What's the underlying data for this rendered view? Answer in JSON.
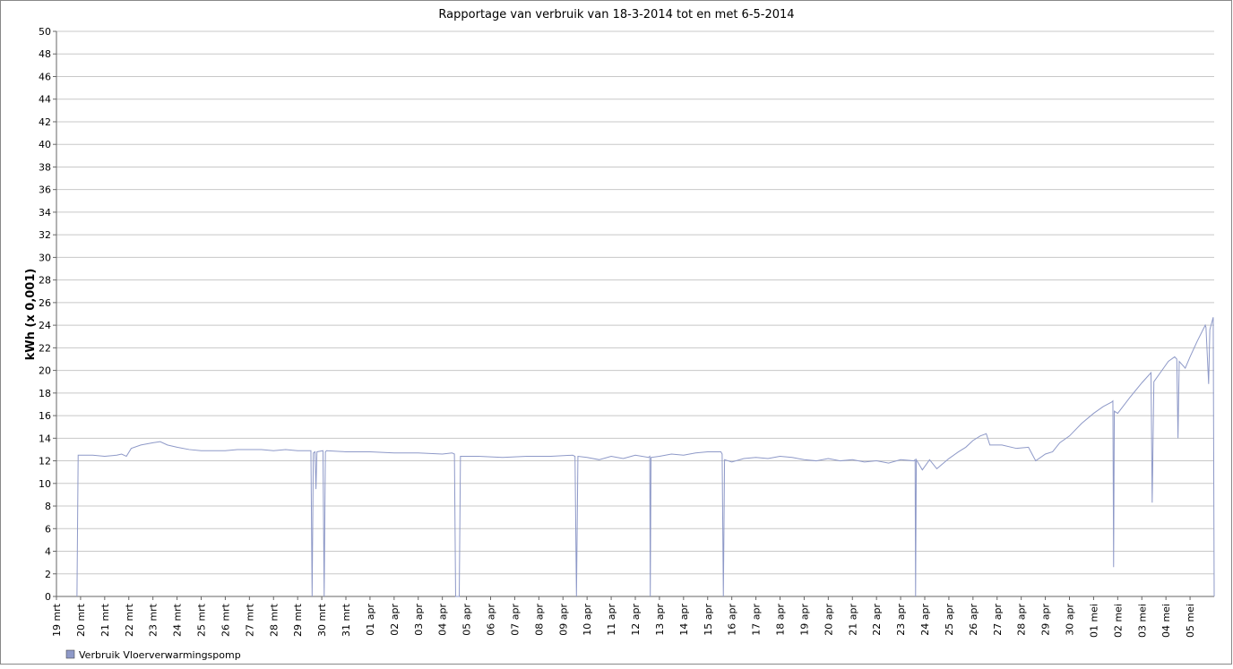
{
  "chart_data": {
    "type": "line",
    "title": "Rapportage van verbruik van 18-3-2014 tot en met 6-5-2014",
    "y_label": "kWh (x 0,001)",
    "ylim": [
      0,
      50
    ],
    "yticks": [
      0,
      2,
      4,
      6,
      8,
      10,
      12,
      14,
      16,
      18,
      20,
      22,
      24,
      26,
      28,
      30,
      32,
      34,
      36,
      38,
      40,
      42,
      44,
      46,
      48,
      50
    ],
    "xlim": [
      0,
      48
    ],
    "xticks": [
      {
        "value": 0,
        "label": "19 mrt"
      },
      {
        "value": 1,
        "label": "20 mrt"
      },
      {
        "value": 2,
        "label": "21 mrt"
      },
      {
        "value": 3,
        "label": "22 mrt"
      },
      {
        "value": 4,
        "label": "23 mrt"
      },
      {
        "value": 5,
        "label": "24 mrt"
      },
      {
        "value": 6,
        "label": "25 mrt"
      },
      {
        "value": 7,
        "label": "26 mrt"
      },
      {
        "value": 8,
        "label": "27 mrt"
      },
      {
        "value": 9,
        "label": "28 mrt"
      },
      {
        "value": 10,
        "label": "29 mrt"
      },
      {
        "value": 11,
        "label": "30 mrt"
      },
      {
        "value": 12,
        "label": "31 mrt"
      },
      {
        "value": 13,
        "label": "01 apr"
      },
      {
        "value": 14,
        "label": "02 apr"
      },
      {
        "value": 15,
        "label": "03 apr"
      },
      {
        "value": 16,
        "label": "04 apr"
      },
      {
        "value": 17,
        "label": "05 apr"
      },
      {
        "value": 18,
        "label": "06 apr"
      },
      {
        "value": 19,
        "label": "07 apr"
      },
      {
        "value": 20,
        "label": "08 apr"
      },
      {
        "value": 21,
        "label": "09 apr"
      },
      {
        "value": 22,
        "label": "10 apr"
      },
      {
        "value": 23,
        "label": "11 apr"
      },
      {
        "value": 24,
        "label": "12 apr"
      },
      {
        "value": 25,
        "label": "13 apr"
      },
      {
        "value": 26,
        "label": "14 apr"
      },
      {
        "value": 27,
        "label": "15 apr"
      },
      {
        "value": 28,
        "label": "16 apr"
      },
      {
        "value": 29,
        "label": "17 apr"
      },
      {
        "value": 30,
        "label": "18 apr"
      },
      {
        "value": 31,
        "label": "19 apr"
      },
      {
        "value": 32,
        "label": "20 apr"
      },
      {
        "value": 33,
        "label": "21 apr"
      },
      {
        "value": 34,
        "label": "22 apr"
      },
      {
        "value": 35,
        "label": "23 apr"
      },
      {
        "value": 36,
        "label": "24 apr"
      },
      {
        "value": 37,
        "label": "25 apr"
      },
      {
        "value": 38,
        "label": "26 apr"
      },
      {
        "value": 39,
        "label": "27 apr"
      },
      {
        "value": 40,
        "label": "28 apr"
      },
      {
        "value": 41,
        "label": "29 apr"
      },
      {
        "value": 42,
        "label": "30 apr"
      },
      {
        "value": 43,
        "label": "01 mei"
      },
      {
        "value": 44,
        "label": "02 mei"
      },
      {
        "value": 45,
        "label": "03 mei"
      },
      {
        "value": 46,
        "label": "04 mei"
      },
      {
        "value": 47,
        "label": "05 mei"
      }
    ],
    "grid": true,
    "legend": "bottom-left",
    "series": [
      {
        "name": "Verbruik Vloerverwarmingspomp",
        "color": "#8e99c8",
        "x": [
          0.85,
          0.9,
          1.5,
          2,
          2.5,
          2.7,
          2.9,
          3.1,
          3.5,
          4,
          4.3,
          4.6,
          5,
          5.5,
          6,
          6.5,
          7,
          7.5,
          8,
          8.5,
          9,
          9.5,
          10,
          10.5,
          10.55,
          10.6,
          10.65,
          10.72,
          10.76,
          10.8,
          11.05,
          11.1,
          11.15,
          11.2,
          12,
          13,
          14,
          15,
          16,
          16.4,
          16.5,
          16.55,
          16.7,
          16.75,
          17.5,
          18.5,
          19.5,
          20.5,
          21.4,
          21.5,
          21.56,
          21.62,
          22,
          22.5,
          23,
          23.5,
          24,
          24.55,
          24.6,
          24.62,
          24.65,
          25,
          25.5,
          26,
          26.5,
          27,
          27.55,
          27.6,
          27.65,
          27.7,
          28,
          28.5,
          29,
          29.5,
          30,
          30.5,
          31,
          31.5,
          32,
          32.5,
          33,
          33.5,
          34,
          34.5,
          35,
          35.55,
          35.6,
          35.62,
          35.65,
          35.9,
          36.2,
          36.5,
          37,
          37.4,
          37.7,
          38,
          38.3,
          38.55,
          38.7,
          39.2,
          39.8,
          40.3,
          40.45,
          40.6,
          41,
          41.3,
          41.6,
          42,
          42.5,
          43,
          43.4,
          43.75,
          43.8,
          43.83,
          43.86,
          44,
          44.5,
          45,
          45.38,
          45.43,
          45.5,
          45.8,
          46.1,
          46.36,
          46.45,
          46.5,
          46.55,
          46.8,
          47,
          47.3,
          47.63,
          47.66,
          47.77,
          47.82,
          47.96,
          48
        ],
        "values": [
          0,
          12.5,
          12.5,
          12.4,
          12.5,
          12.6,
          12.4,
          13.1,
          13.4,
          13.6,
          13.7,
          13.4,
          13.2,
          13.0,
          12.9,
          12.9,
          12.9,
          13.0,
          13.0,
          13.0,
          12.9,
          13.0,
          12.9,
          12.9,
          12.9,
          0,
          12.7,
          12.8,
          9.5,
          12.8,
          12.9,
          0,
          12.8,
          12.9,
          12.8,
          12.8,
          12.7,
          12.7,
          12.6,
          12.7,
          12.6,
          0,
          0,
          12.4,
          12.4,
          12.3,
          12.4,
          12.4,
          12.5,
          12.4,
          0,
          12.4,
          12.3,
          12.1,
          12.4,
          12.2,
          12.5,
          12.3,
          12.4,
          0,
          12.3,
          12.4,
          12.6,
          12.5,
          12.7,
          12.8,
          12.8,
          12.6,
          0,
          12.1,
          11.9,
          12.2,
          12.3,
          12.2,
          12.4,
          12.3,
          12.1,
          12.0,
          12.2,
          12.0,
          12.1,
          11.9,
          12.0,
          11.8,
          12.1,
          12.0,
          12.1,
          0,
          12.1,
          11.2,
          12.1,
          11.3,
          12.2,
          12.8,
          13.2,
          13.8,
          14.2,
          14.4,
          13.4,
          13.4,
          13.1,
          13.2,
          12.6,
          12.0,
          12.6,
          12.8,
          13.6,
          14.2,
          15.3,
          16.2,
          16.8,
          17.2,
          17.3,
          2.6,
          16.4,
          16.2,
          17.6,
          18.9,
          19.8,
          8.3,
          19.0,
          19.9,
          20.8,
          21.2,
          21.0,
          14.0,
          20.8,
          20.2,
          21.2,
          22.6,
          24.0,
          23.8,
          18.8,
          23.6,
          24.7,
          0
        ]
      }
    ]
  }
}
